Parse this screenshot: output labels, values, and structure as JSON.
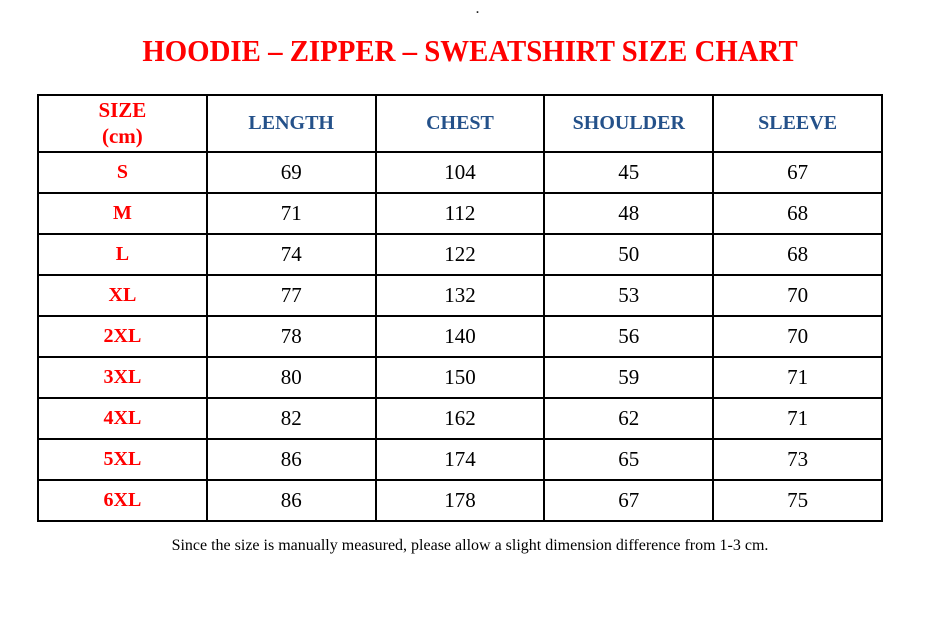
{
  "page": {
    "stray_dot": ".",
    "title": "HOODIE – ZIPPER – SWEATSHIRT SIZE CHART",
    "footnote": "Since the size is manually measured, please allow a slight dimension difference from 1-3 cm.",
    "units": "cm"
  },
  "colors": {
    "title_red": "#FF0000",
    "size_red": "#FF0000",
    "header_blue": "#24518A",
    "text_black": "#000000",
    "border_black": "#000000",
    "background": "#FFFFFF"
  },
  "chart_data": {
    "type": "table",
    "title": "HOODIE – ZIPPER – SWEATSHIRT SIZE CHART",
    "columns": [
      "SIZE\n(cm)",
      "LENGTH",
      "CHEST",
      "SHOULDER",
      "SLEEVE"
    ],
    "rows": [
      {
        "size": "S",
        "length": "69",
        "chest": "104",
        "shoulder": "45",
        "sleeve": "67"
      },
      {
        "size": "M",
        "length": "71",
        "chest": "112",
        "shoulder": "48",
        "sleeve": "68"
      },
      {
        "size": "L",
        "length": "74",
        "chest": "122",
        "shoulder": "50",
        "sleeve": "68"
      },
      {
        "size": "XL",
        "length": "77",
        "chest": "132",
        "shoulder": "53",
        "sleeve": "70"
      },
      {
        "size": "2XL",
        "length": "78",
        "chest": "140",
        "shoulder": "56",
        "sleeve": "70"
      },
      {
        "size": "3XL",
        "length": "80",
        "chest": "150",
        "shoulder": "59",
        "sleeve": "71"
      },
      {
        "size": "4XL",
        "length": "82",
        "chest": "162",
        "shoulder": "62",
        "sleeve": "71"
      },
      {
        "size": "5XL",
        "length": "86",
        "chest": "174",
        "shoulder": "65",
        "sleeve": "73"
      },
      {
        "size": "6XL",
        "length": "86",
        "chest": "178",
        "shoulder": "67",
        "sleeve": "75"
      }
    ]
  }
}
